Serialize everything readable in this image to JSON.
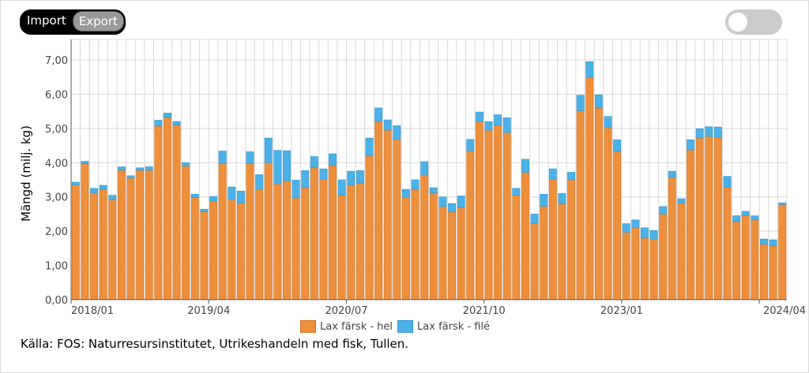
{
  "toolbar": {
    "import_label": "Import",
    "export_label": "Export"
  },
  "toggle": {
    "state": "off"
  },
  "source_text": "Källa: FOS: Naturresursinstitutet, Utrikeshandeln med fisk, Tullen.",
  "colors": {
    "hel": "#ee8f3c",
    "hel_stroke": "#d57420",
    "file": "#4cb1e6",
    "file_stroke": "#2f96cf",
    "grid": "#d8d8d8",
    "axis": "#555555"
  },
  "chart_data": {
    "type": "bar",
    "stacked": true,
    "ylabel": "Mängd (milj. kg)",
    "ylim": [
      0,
      7.6
    ],
    "yticks": [
      "0,00",
      "1,00",
      "2,00",
      "3,00",
      "4,00",
      "5,00",
      "6,00",
      "7,00"
    ],
    "x_labels": [
      "2018/01",
      "2019/04",
      "2020/07",
      "2021/10",
      "2023/01",
      "2024/04"
    ],
    "x_start": "2018/01",
    "x_end": "2024/04",
    "grid": true,
    "legend_position": "bottom",
    "series": [
      {
        "name": "Lax färsk - hel",
        "values": [
          3.35,
          3.97,
          3.12,
          3.22,
          2.92,
          3.78,
          3.55,
          3.78,
          3.78,
          5.07,
          5.32,
          5.1,
          3.9,
          2.98,
          2.57,
          2.88,
          3.97,
          2.92,
          2.82,
          3.97,
          3.22,
          4.0,
          3.38,
          3.47,
          2.97,
          3.27,
          3.85,
          3.52,
          3.93,
          3.05,
          3.35,
          3.4,
          4.2,
          5.2,
          4.95,
          4.68,
          3.0,
          3.22,
          3.65,
          3.12,
          2.72,
          2.56,
          2.68,
          4.35,
          5.2,
          4.95,
          5.1,
          4.88,
          3.05,
          3.72,
          2.22,
          2.73,
          3.52,
          2.8,
          3.5,
          5.52,
          6.5,
          5.6,
          5.02,
          4.32,
          1.97,
          2.1,
          1.8,
          1.77,
          2.5,
          3.57,
          2.82,
          4.37,
          4.72,
          4.77,
          4.74,
          3.28,
          2.28,
          2.45,
          2.33,
          1.62,
          1.57,
          2.78
        ],
        "color": "#ee8f3c"
      },
      {
        "name": "Lax färsk - filé",
        "values": [
          0.08,
          0.07,
          0.13,
          0.12,
          0.13,
          0.1,
          0.07,
          0.07,
          0.1,
          0.17,
          0.13,
          0.1,
          0.1,
          0.1,
          0.07,
          0.13,
          0.37,
          0.37,
          0.35,
          0.35,
          0.43,
          0.72,
          0.98,
          0.88,
          0.52,
          0.5,
          0.33,
          0.3,
          0.33,
          0.45,
          0.4,
          0.37,
          0.52,
          0.4,
          0.3,
          0.4,
          0.22,
          0.28,
          0.38,
          0.15,
          0.28,
          0.25,
          0.35,
          0.33,
          0.28,
          0.25,
          0.3,
          0.43,
          0.2,
          0.38,
          0.28,
          0.35,
          0.3,
          0.3,
          0.22,
          0.45,
          0.45,
          0.38,
          0.33,
          0.35,
          0.25,
          0.23,
          0.3,
          0.25,
          0.22,
          0.18,
          0.13,
          0.3,
          0.27,
          0.28,
          0.3,
          0.32,
          0.17,
          0.13,
          0.12,
          0.15,
          0.18,
          0.05
        ],
        "color": "#4cb1e6"
      }
    ]
  }
}
